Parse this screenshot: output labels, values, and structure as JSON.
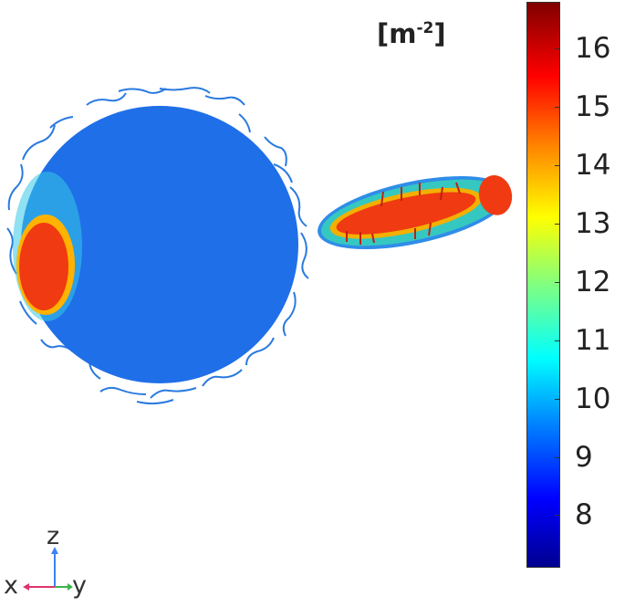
{
  "colorbar": {
    "unit_base": "[m",
    "unit_exp": "-2",
    "unit_close": "]",
    "ticks": [
      16,
      15,
      14,
      13,
      12,
      11,
      10,
      9,
      8
    ],
    "range": [
      7.1,
      16.8
    ],
    "colors": [
      "#00008f",
      "#0000ff",
      "#0080ff",
      "#00ffff",
      "#80ff80",
      "#ffff00",
      "#ff8000",
      "#ff0000",
      "#800000"
    ]
  },
  "triad": {
    "z": "z",
    "x": "x",
    "y": "y",
    "z_color": "#3b82f6",
    "x_color": "#e0336c",
    "y_color": "#3cb44b"
  },
  "surface_colors": {
    "sphere": "#1f6fe8",
    "hot": "#f03a12",
    "warm": "#ffb000",
    "cyan": "#29d3e8"
  }
}
